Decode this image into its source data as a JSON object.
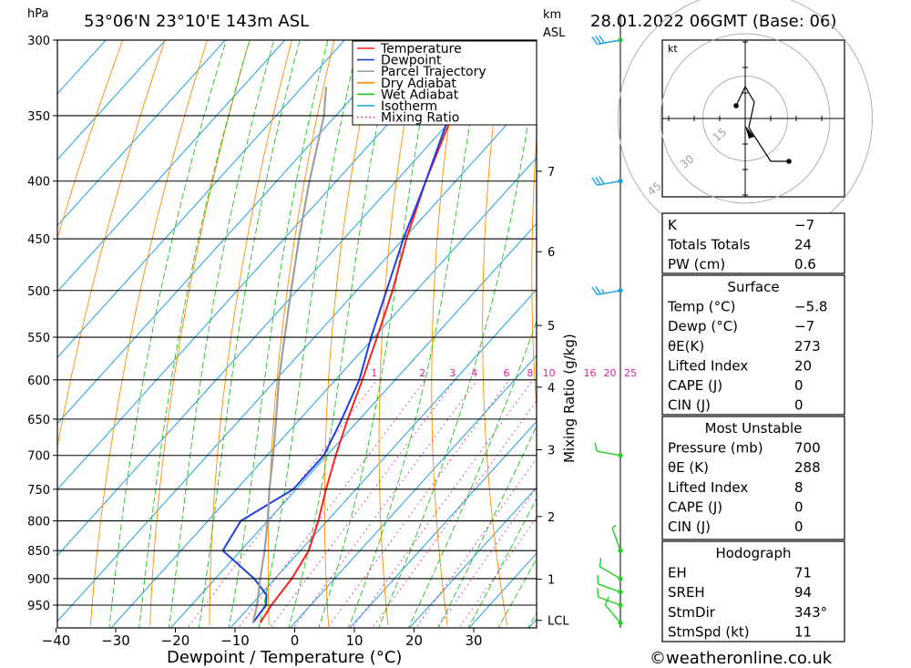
{
  "header": {
    "location": "53°06'N  23°10'E  143m  ASL",
    "datetime": "28.01.2022  06GMT  (Base: 06)",
    "pressure_unit": "hPa",
    "km_label": "km",
    "asl_label": "ASL"
  },
  "footer": {
    "credit": "©weatheronline.co.uk"
  },
  "colors": {
    "temperature": "#ff2020",
    "dewpoint": "#1f3fe0",
    "parcel": "#a0a0a0",
    "dry_adiabat": "#ff8c00",
    "wet_adiabat": "#22c022",
    "isotherm": "#1ea0e0",
    "mixing_ratio": "#e0209a",
    "wind": "#22d022"
  },
  "chart_data": {
    "type": "line",
    "title": "53°06'N  23°10'E  143m  ASL",
    "xlabel": "Dewpoint / Temperature (°C)",
    "ylabel": "hPa",
    "secondary_ylabel": "Mixing Ratio (g/kg)",
    "xlim": [
      -40,
      40
    ],
    "x_ticks": [
      -40,
      -30,
      -20,
      -10,
      0,
      10,
      20,
      30
    ],
    "ylim": [
      300,
      985
    ],
    "y_scale": "log",
    "pressure_ticks": [
      300,
      350,
      400,
      450,
      500,
      550,
      600,
      650,
      700,
      750,
      800,
      850,
      900,
      950
    ],
    "km_ticks": [
      {
        "label": "7",
        "p": 392
      },
      {
        "label": "6",
        "p": 462
      },
      {
        "label": "5",
        "p": 537
      },
      {
        "label": "4",
        "p": 609
      },
      {
        "label": "3",
        "p": 692
      },
      {
        "label": "2",
        "p": 793
      },
      {
        "label": "1",
        "p": 901
      },
      {
        "label": "LCL",
        "p": 980
      }
    ],
    "mixing_ratio_labels": [
      "1",
      "2",
      "3",
      "4",
      "6",
      "8",
      "10",
      "16",
      "20",
      "25"
    ],
    "mixing_ratio_values": [
      1,
      2,
      3,
      4,
      6,
      8,
      10,
      16,
      20,
      25
    ],
    "grid": true,
    "legend_position": "top-center",
    "legend": [
      "Temperature",
      "Dewpoint",
      "Parcel Trajectory",
      "Dry Adiabat",
      "Wet Adiabat",
      "Isotherm",
      "Mixing Ratio"
    ],
    "series": [
      {
        "name": "Temperature",
        "points": [
          {
            "p": 985,
            "t": -5.8
          },
          {
            "p": 950,
            "t": -6.6
          },
          {
            "p": 900,
            "t": -7.2
          },
          {
            "p": 850,
            "t": -8.6
          },
          {
            "p": 800,
            "t": -11.5
          },
          {
            "p": 750,
            "t": -15.0
          },
          {
            "p": 700,
            "t": -18.5
          },
          {
            "p": 650,
            "t": -22.0
          },
          {
            "p": 600,
            "t": -25.5
          },
          {
            "p": 550,
            "t": -29.5
          },
          {
            "p": 500,
            "t": -34.0
          },
          {
            "p": 450,
            "t": -39.5
          },
          {
            "p": 400,
            "t": -45.0
          },
          {
            "p": 350,
            "t": -50.5
          },
          {
            "p": 300,
            "t": -55.5
          }
        ]
      },
      {
        "name": "Dewpoint",
        "points": [
          {
            "p": 985,
            "t": -7.0
          },
          {
            "p": 950,
            "t": -7.5
          },
          {
            "p": 930,
            "t": -9.0
          },
          {
            "p": 900,
            "t": -13.5
          },
          {
            "p": 850,
            "t": -23.0
          },
          {
            "p": 800,
            "t": -24.5
          },
          {
            "p": 750,
            "t": -20.5
          },
          {
            "p": 700,
            "t": -20.5
          },
          {
            "p": 650,
            "t": -23.0
          },
          {
            "p": 600,
            "t": -26.0
          },
          {
            "p": 550,
            "t": -30.5
          },
          {
            "p": 500,
            "t": -35.0
          },
          {
            "p": 450,
            "t": -40.0
          },
          {
            "p": 400,
            "t": -45.0
          },
          {
            "p": 350,
            "t": -51.0
          },
          {
            "p": 330,
            "t": -56.0
          },
          {
            "p": 300,
            "t": -71.0
          }
        ]
      },
      {
        "name": "Parcel Trajectory",
        "points": [
          {
            "p": 985,
            "t": -7.0
          },
          {
            "p": 950,
            "t": -9.0
          },
          {
            "p": 900,
            "t": -12.5
          },
          {
            "p": 850,
            "t": -16.0
          },
          {
            "p": 800,
            "t": -20.0
          },
          {
            "p": 750,
            "t": -24.5
          },
          {
            "p": 700,
            "t": -29.0
          },
          {
            "p": 650,
            "t": -34.0
          },
          {
            "p": 600,
            "t": -39.5
          },
          {
            "p": 550,
            "t": -45.0
          },
          {
            "p": 500,
            "t": -51.0
          },
          {
            "p": 450,
            "t": -57.5
          },
          {
            "p": 400,
            "t": -64.5
          },
          {
            "p": 350,
            "t": -72.0
          },
          {
            "p": 330,
            "t": -76.0
          }
        ]
      }
    ],
    "wind_profile": [
      {
        "p": 300,
        "dir": 260,
        "kt": 30
      },
      {
        "p": 400,
        "dir": 260,
        "kt": 30
      },
      {
        "p": 500,
        "dir": 260,
        "kt": 25
      },
      {
        "p": 700,
        "dir": 280,
        "kt": 10
      },
      {
        "p": 850,
        "dir": 340,
        "kt": 5
      },
      {
        "p": 900,
        "dir": 300,
        "kt": 10
      },
      {
        "p": 925,
        "dir": 290,
        "kt": 10
      },
      {
        "p": 950,
        "dir": 290,
        "kt": 10
      },
      {
        "p": 985,
        "dir": 320,
        "kt": 10
      }
    ]
  },
  "hodograph": {
    "unit": "kt",
    "ring_labels": [
      "15",
      "30",
      "45"
    ]
  },
  "indices": {
    "rows": [
      {
        "label": "K",
        "value": "-7"
      },
      {
        "label": "Totals Totals",
        "value": "24"
      },
      {
        "label": "PW (cm)",
        "value": "0.6"
      }
    ]
  },
  "surface": {
    "title": "Surface",
    "rows": [
      {
        "label": "Temp (°C)",
        "value": "-5.8"
      },
      {
        "label": "Dewp (°C)",
        "value": "-7"
      },
      {
        "label": "θE(K)",
        "value": "273"
      },
      {
        "label": "Lifted Index",
        "value": "20"
      },
      {
        "label": "CAPE (J)",
        "value": "0"
      },
      {
        "label": "CIN (J)",
        "value": "0"
      }
    ]
  },
  "most_unstable": {
    "title": "Most Unstable",
    "rows": [
      {
        "label": "Pressure (mb)",
        "value": "700"
      },
      {
        "label": "θE (K)",
        "value": "288"
      },
      {
        "label": "Lifted Index",
        "value": "8"
      },
      {
        "label": "CAPE (J)",
        "value": "0"
      },
      {
        "label": "CIN (J)",
        "value": "0"
      }
    ]
  },
  "hodo_params": {
    "title": "Hodograph",
    "rows": [
      {
        "label": "EH",
        "value": "71"
      },
      {
        "label": "SREH",
        "value": "94"
      },
      {
        "label": "StmDir",
        "value": "343°"
      },
      {
        "label": "StmSpd (kt)",
        "value": "11"
      }
    ]
  }
}
